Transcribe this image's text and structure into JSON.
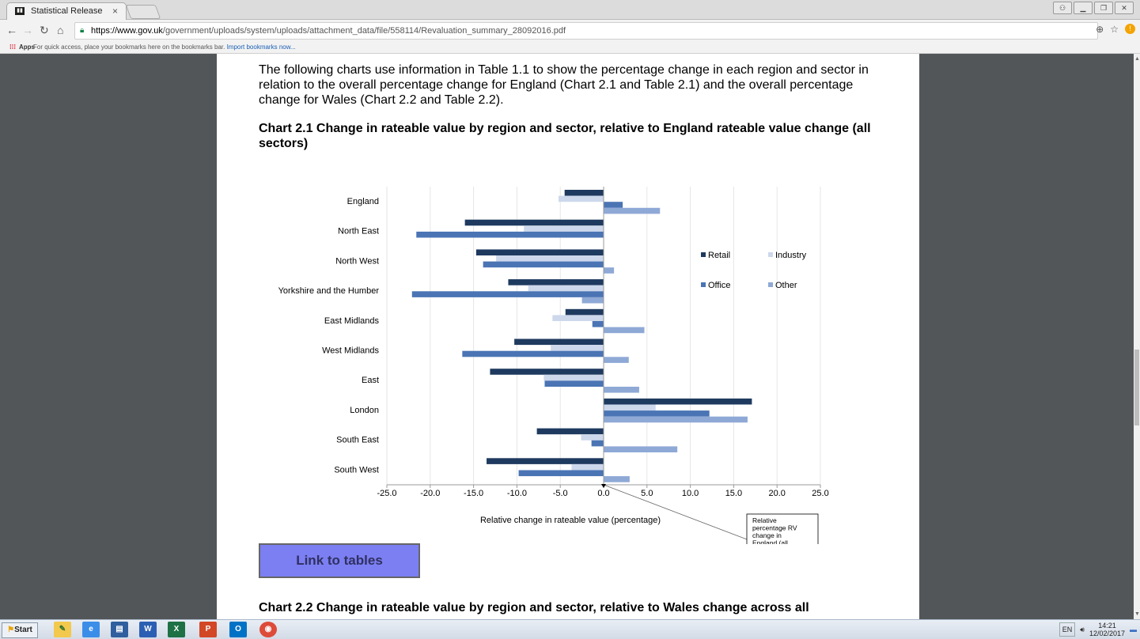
{
  "browser": {
    "tab_title": "Statistical Release",
    "tab_close": "×",
    "url_host": "https://www.gov.uk",
    "url_path": "/government/uploads/system/uploads/attachment_data/file/558114/Revaluation_summary_28092016.pdf",
    "apps_label": "Apps",
    "bookmarks_hint": "For quick access, place your bookmarks here on the bookmarks bar.",
    "bookmarks_link": "Import bookmarks now..."
  },
  "document": {
    "intro": "The following charts use information in Table 1.1 to show the percentage change in each region and sector in relation to the overall percentage change for England (Chart 2.1 and Table 2.1) and the overall percentage change for Wales (Chart 2.2 and Table 2.2).",
    "chart_heading": "Chart 2.1 Change in rateable value by region and sector, relative to England rateable value change (all sectors)",
    "link_button": "Link to tables",
    "next_heading": "Chart 2.2 Change in rateable value by region and sector, relative to Wales change across all"
  },
  "chart_data": {
    "type": "bar",
    "orientation": "horizontal",
    "categories": [
      "England",
      "North East",
      "North West",
      "Yorkshire and the Humber",
      "East Midlands",
      "West Midlands",
      "East",
      "London",
      "South East",
      "South West"
    ],
    "series": [
      {
        "name": "Retail",
        "color": "#1f3a5f",
        "values": [
          -4.5,
          -16.0,
          -14.7,
          -11.0,
          -4.4,
          -10.3,
          -13.1,
          17.1,
          -7.7,
          -13.5
        ]
      },
      {
        "name": "Industry",
        "color": "#cdd8ec",
        "values": [
          -5.2,
          -9.2,
          -12.4,
          -8.7,
          -5.9,
          -6.1,
          -6.9,
          6.0,
          -2.6,
          -3.7
        ]
      },
      {
        "name": "Office",
        "color": "#4a74b4",
        "values": [
          2.2,
          -21.6,
          -13.9,
          -22.1,
          -1.3,
          -16.3,
          -6.8,
          12.2,
          -1.4,
          -9.8
        ]
      },
      {
        "name": "Other",
        "color": "#8fa9d6",
        "values": [
          6.5,
          0.0,
          1.2,
          -2.5,
          4.7,
          2.9,
          4.1,
          16.6,
          8.5,
          3.0
        ]
      }
    ],
    "xlabel": "Relative change in rateable value (percentage)",
    "xlim": [
      -25,
      25
    ],
    "xticks": [
      "-25.0",
      "-20.0",
      "-15.0",
      "-10.0",
      "-5.0",
      "0.0",
      "5.0",
      "10.0",
      "15.0",
      "20.0",
      "25.0"
    ],
    "legend_position": "right",
    "annotation": "Relative percentage RV change in England  (all sectors)",
    "grid": true
  },
  "taskbar": {
    "start_label": "Start",
    "lang": "EN",
    "time": "14:21",
    "date": "12/02/2017"
  }
}
